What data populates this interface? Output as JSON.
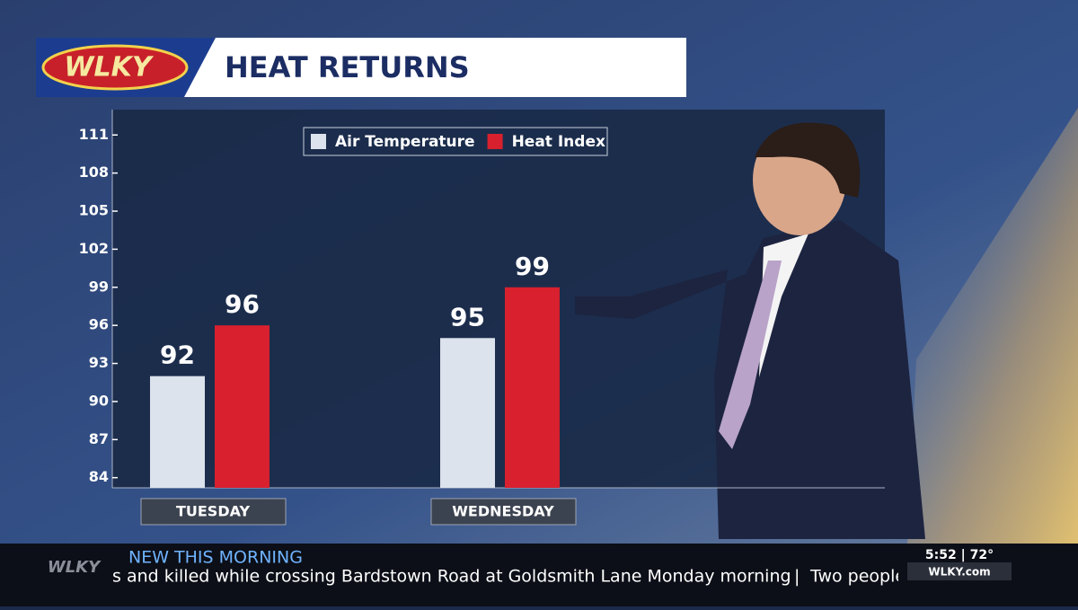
{
  "logo": "WLKY",
  "headline": "HEAT RETURNS",
  "chart_data": {
    "type": "bar",
    "categories": [
      "TUESDAY",
      "WEDNESDAY"
    ],
    "series": [
      {
        "name": "Air Temperature",
        "color": "#dce3ec",
        "values": [
          92,
          95
        ]
      },
      {
        "name": "Heat Index",
        "color": "#d8202e",
        "values": [
          96,
          99
        ]
      }
    ],
    "ylim": [
      83.2,
      113
    ],
    "yticks": [
      84,
      87,
      90,
      93,
      96,
      99,
      102,
      105,
      108,
      111
    ],
    "grid": false
  },
  "ticker": {
    "brand": "WLKY",
    "label": "NEW THIS MORNING",
    "story": "s and killed while crossing Bardstown Road at Goldsmith Lane Monday morning",
    "separator": "|",
    "next": "Two people",
    "time_temp": "5:52 | 72°",
    "site": "WLKY.com"
  }
}
